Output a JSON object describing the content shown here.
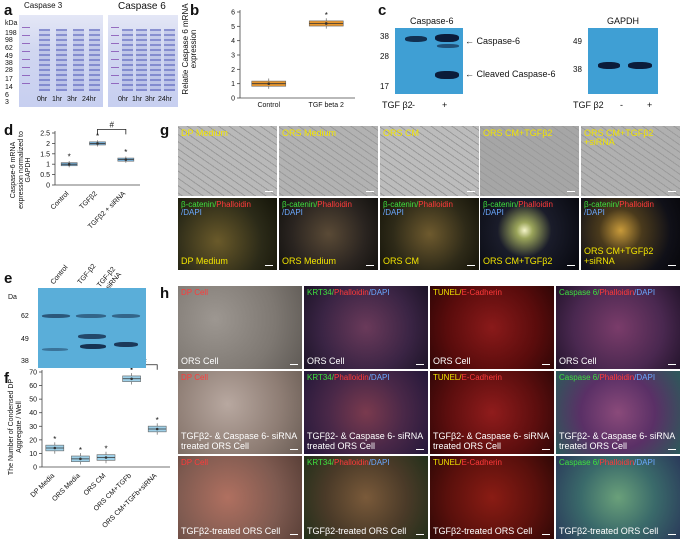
{
  "panels": {
    "a": {
      "label": "a",
      "gel1_title": "Caspase 3",
      "gel2_title": "Caspase 6",
      "kda": "kDa",
      "markers": [
        "198",
        "98",
        "62",
        "49",
        "38",
        "28",
        "17",
        "14",
        "6",
        "3"
      ],
      "lanes": [
        "0hr",
        "1hr",
        "3hr",
        "24hr"
      ]
    },
    "b": {
      "label": "b",
      "ylabel": "Relatie Caspase 6 mRNA expression",
      "yticks": [
        "6",
        "5",
        "4",
        "3",
        "2",
        "1",
        "0"
      ],
      "categories": [
        "Control",
        "TGF beta 2"
      ],
      "star": "*"
    },
    "c": {
      "label": "c",
      "blot1_title": "Caspase-6",
      "blot2_title": "GAPDH",
      "m1": [
        "38",
        "28",
        "17"
      ],
      "m2": [
        "49",
        "38"
      ],
      "arrow1": "← Caspase-6",
      "arrow2": "← Cleaved  Caspase-6",
      "treat": "TGF β2",
      "minus": "-",
      "plus": "+"
    },
    "d": {
      "label": "d",
      "ylabel": "Caspase-6 mRNA expression normalized to GAPDH",
      "yticks": [
        "2.5",
        "2",
        "1.5",
        "1",
        "0.5",
        "0"
      ],
      "categories": [
        "Control",
        "TGFβ2",
        "TGFβ2 + siRNA"
      ],
      "star": "*",
      "hash": "#"
    },
    "e": {
      "label": "e",
      "da": "Da",
      "markers": [
        "62",
        "49",
        "38"
      ],
      "lanes": [
        "Control",
        "TGF-β2",
        "TGF-β2 +siRNA"
      ]
    },
    "f": {
      "label": "f",
      "ylabel": "The Number of Condensed DP Aggregate / Well",
      "yticks": [
        "70",
        "60",
        "50",
        "40",
        "30",
        "20",
        "10",
        "0"
      ],
      "categories": [
        "DP Media",
        "ORS Media",
        "ORS CM",
        "ORS CM+TGFb",
        "ORS CM+TGFb+siRNA"
      ],
      "star": "*",
      "hash": "#"
    },
    "g": {
      "label": "g",
      "top": [
        "DP Medium",
        "ORS Medium",
        "ORS CM",
        "ORS CM+TGFβ2",
        "ORS CM+TGFβ2 +siRNA"
      ],
      "stain_a": "β-catenin/",
      "stain_b": "Phalloidin",
      "stain_c": "/DAPI",
      "bottom": [
        "DP Medium",
        "ORS Medium",
        "ORS CM",
        "ORS CM+TGFβ2",
        "ORS CM+TGFβ2 +siRNA"
      ]
    },
    "h": {
      "label": "h",
      "col_stains": [
        {
          "a": "DP Cell",
          "b": ""
        },
        {
          "a": "KRT34/",
          "b": "Phalloidin",
          "c": "/DAPI"
        },
        {
          "a": "TUNEL/",
          "b": "E-Cadherin",
          "c": ""
        },
        {
          "a": "Caspase 6/",
          "b": "Phalloidin",
          "c": "/DAPI"
        }
      ],
      "rows": [
        "ORS Cell",
        "TGFβ2- & Caspase 6- siRNA treated ORS Cell",
        "TGFβ2-treated ORS Cell"
      ]
    }
  },
  "chart_data": [
    {
      "type": "box",
      "panel": "b",
      "title": "",
      "xlabel": "",
      "ylabel": "Relatie Caspase 6 mRNA expression",
      "categories": [
        "Control",
        "TGF beta 2"
      ],
      "values": [
        1.0,
        5.2
      ],
      "ylim": [
        0,
        6
      ],
      "grid": false
    },
    {
      "type": "box",
      "panel": "d",
      "title": "",
      "xlabel": "",
      "ylabel": "Caspase-6 mRNA expression normalized to GAPDH",
      "categories": [
        "Control",
        "TGFβ2",
        "TGFβ2 + siRNA"
      ],
      "values": [
        1.0,
        2.0,
        1.22
      ],
      "ylim": [
        0,
        2.5
      ],
      "grid": false
    },
    {
      "type": "box",
      "panel": "f",
      "title": "",
      "xlabel": "",
      "ylabel": "The Number of Condensed DP Aggregate / Well",
      "categories": [
        "DP Media",
        "ORS Media",
        "ORS CM",
        "ORS CM+TGFb",
        "ORS CM+TGFb+siRNA"
      ],
      "values": [
        14,
        6,
        7,
        65,
        28
      ],
      "ylim": [
        0,
        70
      ],
      "grid": false
    }
  ]
}
